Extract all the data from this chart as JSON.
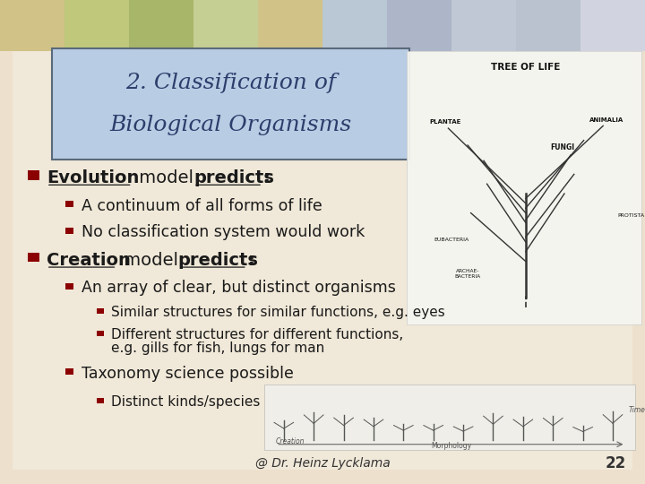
{
  "title_line1": "2. Classification of",
  "title_line2": "Biological Organisms",
  "title_box_color": "#b8cce4",
  "title_box_edge": "#5a6a7a",
  "bg_color": "#ede0cc",
  "slide_bg": "#f0e8d8",
  "bullet_color": "#8b0000",
  "text_color": "#1a1a1a",
  "footer_text": "@ Dr. Heinz Lycklama",
  "footer_number": "22",
  "top_banner_colors": [
    "#c8b870",
    "#b0c060",
    "#90a848",
    "#b8c880",
    "#c8b870",
    "#a8c0d8",
    "#98a8c8",
    "#b0c0d8",
    "#a8b8d0",
    "#c8d0e8"
  ]
}
